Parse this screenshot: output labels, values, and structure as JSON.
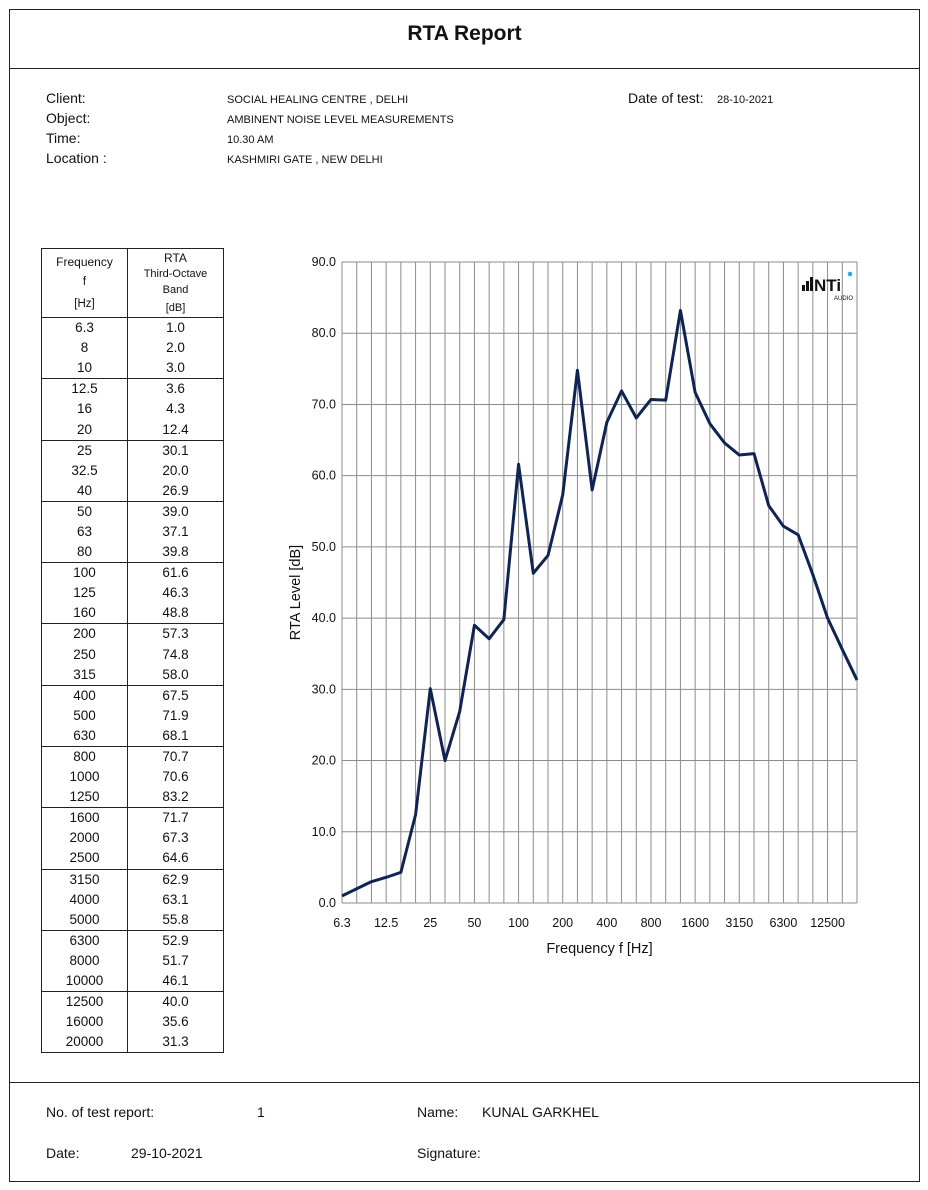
{
  "report": {
    "title": "RTA Report"
  },
  "info": {
    "client_label": "Client:",
    "client_value": "SOCIAL HEALING CENTRE , DELHI",
    "object_label": "Object:",
    "object_value": "AMBINENT NOISE LEVEL MEASUREMENTS",
    "time_label": "Time:",
    "time_value": "10.30 AM",
    "location_label": "Location :",
    "location_value": "KASHMIRI GATE , NEW DELHI",
    "date_label": "Date of test:",
    "date_value": "28-10-2021"
  },
  "table": {
    "head_freq": [
      "Frequency",
      "f",
      "[Hz]"
    ],
    "head_rta": [
      "RTA",
      "Third-Octave",
      "Band",
      "[dB]"
    ],
    "rows": [
      [
        "6.3",
        "1.0"
      ],
      [
        "8",
        "2.0"
      ],
      [
        "10",
        "3.0"
      ],
      [
        "12.5",
        "3.6"
      ],
      [
        "16",
        "4.3"
      ],
      [
        "20",
        "12.4"
      ],
      [
        "25",
        "30.1"
      ],
      [
        "32.5",
        "20.0"
      ],
      [
        "40",
        "26.9"
      ],
      [
        "50",
        "39.0"
      ],
      [
        "63",
        "37.1"
      ],
      [
        "80",
        "39.8"
      ],
      [
        "100",
        "61.6"
      ],
      [
        "125",
        "46.3"
      ],
      [
        "160",
        "48.8"
      ],
      [
        "200",
        "57.3"
      ],
      [
        "250",
        "74.8"
      ],
      [
        "315",
        "58.0"
      ],
      [
        "400",
        "67.5"
      ],
      [
        "500",
        "71.9"
      ],
      [
        "630",
        "68.1"
      ],
      [
        "800",
        "70.7"
      ],
      [
        "1000",
        "70.6"
      ],
      [
        "1250",
        "83.2"
      ],
      [
        "1600",
        "71.7"
      ],
      [
        "2000",
        "67.3"
      ],
      [
        "2500",
        "64.6"
      ],
      [
        "3150",
        "62.9"
      ],
      [
        "4000",
        "63.1"
      ],
      [
        "5000",
        "55.8"
      ],
      [
        "6300",
        "52.9"
      ],
      [
        "8000",
        "51.7"
      ],
      [
        "10000",
        "46.1"
      ],
      [
        "12500",
        "40.0"
      ],
      [
        "16000",
        "35.6"
      ],
      [
        "20000",
        "31.3"
      ]
    ]
  },
  "logo": {
    "text": "NTi",
    "sub": "AUDIO"
  },
  "chart_data": {
    "type": "line",
    "xlabel": "Frequency f [Hz]",
    "ylabel": "RTA Level [dB]",
    "ylim": [
      0,
      90
    ],
    "y_ticks": [
      "0.0",
      "10.0",
      "20.0",
      "30.0",
      "40.0",
      "50.0",
      "60.0",
      "70.0",
      "80.0",
      "90.0"
    ],
    "x_tick_labels": [
      "6.3",
      "12.5",
      "25",
      "50",
      "100",
      "200",
      "400",
      "800",
      "1600",
      "3150",
      "6300",
      "12500"
    ],
    "categories": [
      "6.3",
      "8",
      "10",
      "12.5",
      "16",
      "20",
      "25",
      "32.5",
      "40",
      "50",
      "63",
      "80",
      "100",
      "125",
      "160",
      "200",
      "250",
      "315",
      "400",
      "500",
      "630",
      "800",
      "1000",
      "1250",
      "1600",
      "2000",
      "2500",
      "3150",
      "4000",
      "5000",
      "6300",
      "8000",
      "10000",
      "12500",
      "16000",
      "20000"
    ],
    "values": [
      1.0,
      2.0,
      3.0,
      3.6,
      4.3,
      12.4,
      30.1,
      20.0,
      26.9,
      39.0,
      37.1,
      39.8,
      61.6,
      46.3,
      48.8,
      57.3,
      74.8,
      58.0,
      67.5,
      71.9,
      68.1,
      70.7,
      70.6,
      83.2,
      71.7,
      67.3,
      64.6,
      62.9,
      63.1,
      55.8,
      52.9,
      51.7,
      46.1,
      40.0,
      35.6,
      31.3
    ],
    "grid": true,
    "line_color": "#0f2452"
  },
  "footer": {
    "report_no_label": "No. of test report:",
    "report_no_value": "1",
    "name_label": "Name:",
    "name_value": "KUNAL GARKHEL",
    "date_label": "Date:",
    "date_value": "29-10-2021",
    "signature_label": "Signature:"
  }
}
